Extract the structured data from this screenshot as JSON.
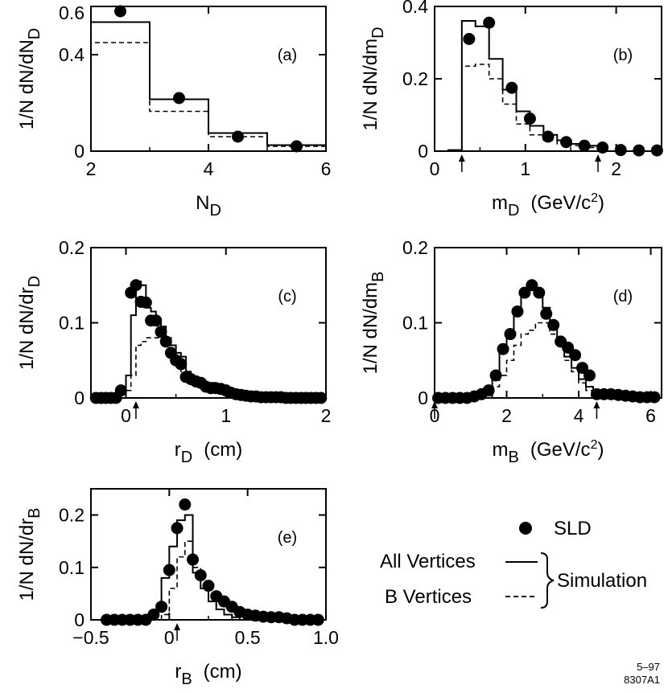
{
  "chart_data": [
    {
      "id": "a",
      "type": "histogram",
      "panel_label": "(a)",
      "xlabel": "N",
      "xlabel_sub": "D",
      "ylabel": "1/N dN/dN",
      "ylabel_sub": "D",
      "xlim": [
        2,
        6
      ],
      "ylim": [
        0,
        0.6
      ],
      "xticks": [
        2,
        4,
        6
      ],
      "yticks": [
        0,
        0.4
      ],
      "ytick_labels": [
        "0",
        "0.4"
      ],
      "ytop_label": "0.6",
      "all_vertices_edges": [
        2,
        3,
        4,
        5,
        6
      ],
      "all_vertices_values": [
        0.535,
        0.215,
        0.075,
        0.025
      ],
      "b_vertices_edges": [
        2,
        3,
        4,
        5,
        6
      ],
      "b_vertices_values": [
        0.45,
        0.165,
        0.06,
        0.02
      ],
      "sld_x": [
        2.5,
        3.5,
        4.5,
        5.5
      ],
      "sld_y": [
        0.58,
        0.22,
        0.06,
        0.02
      ]
    },
    {
      "id": "b",
      "type": "histogram",
      "panel_label": "(b)",
      "xlabel": "m",
      "xlabel_sub": "D",
      "xlabel_unit": "(GeV/c",
      "xlabel_unit_sup": "2",
      "xlabel_unit_end": ")",
      "ylabel": "1/N dN/dm",
      "ylabel_sub": "D",
      "xlim": [
        0,
        2.5
      ],
      "ylim": [
        0,
        0.4
      ],
      "xticks": [
        0,
        1,
        2
      ],
      "yticks": [
        0,
        0.2,
        0.4
      ],
      "ytick_labels": [
        "0",
        "0.2",
        "0.4"
      ],
      "cut_arrows_x": [
        0.3,
        1.8
      ],
      "all_vertices_edges": [
        0.15,
        0.3,
        0.45,
        0.6,
        0.75,
        0.9,
        1.05,
        1.2,
        1.35,
        1.5,
        1.65,
        1.8
      ],
      "all_vertices_values": [
        0.003,
        0.36,
        0.345,
        0.255,
        0.17,
        0.11,
        0.07,
        0.045,
        0.03,
        0.02,
        0.015
      ],
      "b_vertices_edges": [
        0.3,
        0.45,
        0.6,
        0.75,
        0.9,
        1.05,
        1.2,
        1.35,
        1.5,
        1.65,
        1.8
      ],
      "b_vertices_values": [
        0.235,
        0.24,
        0.2,
        0.13,
        0.075,
        0.045,
        0.03,
        0.02,
        0.015,
        0.01
      ],
      "sld_x": [
        0.38,
        0.6,
        0.85,
        1.05,
        1.25,
        1.45,
        1.65,
        1.85,
        2.05,
        2.25,
        2.45
      ],
      "sld_y": [
        0.31,
        0.355,
        0.175,
        0.09,
        0.04,
        0.025,
        0.015,
        0.01,
        0.003,
        0.002,
        0.002
      ]
    },
    {
      "id": "c",
      "type": "histogram",
      "panel_label": "(c)",
      "xlabel": "r",
      "xlabel_sub": "D",
      "xlabel_unit": "(cm)",
      "ylabel": "1/N dN/dr",
      "ylabel_sub": "D",
      "xlim": [
        -0.35,
        2.0
      ],
      "ylim": [
        0,
        0.2
      ],
      "xticks": [
        0,
        1,
        2
      ],
      "yticks": [
        0,
        0.1,
        0.2
      ],
      "ytick_labels": [
        "0",
        "0.1",
        "0.2"
      ],
      "cut_arrows_x": [
        0.1
      ],
      "all_vertices_edges": [
        0.0,
        0.05,
        0.1,
        0.15,
        0.2,
        0.25,
        0.3,
        0.35,
        0.4,
        0.45,
        0.5,
        0.55,
        0.6,
        0.65,
        0.7,
        0.8,
        0.9,
        1.0,
        1.1,
        1.2,
        1.3
      ],
      "all_vertices_values": [
        0.03,
        0.11,
        0.155,
        0.15,
        0.12,
        0.115,
        0.1,
        0.095,
        0.08,
        0.07,
        0.06,
        0.055,
        0.035,
        0.025,
        0.02,
        0.02,
        0.015,
        0.01,
        0.005,
        0.003
      ],
      "b_vertices_edges": [
        0.0,
        0.05,
        0.1,
        0.15,
        0.2,
        0.25,
        0.3,
        0.35,
        0.4,
        0.45,
        0.5,
        0.55,
        0.6,
        0.65,
        0.7,
        0.8,
        0.9,
        1.0,
        1.1
      ],
      "b_vertices_values": [
        0.01,
        0.03,
        0.07,
        0.075,
        0.08,
        0.08,
        0.08,
        0.075,
        0.065,
        0.055,
        0.045,
        0.035,
        0.025,
        0.02,
        0.015,
        0.012,
        0.008,
        0.004
      ],
      "sld_x": [
        -0.3,
        -0.25,
        -0.2,
        -0.15,
        -0.1,
        -0.05,
        0.05,
        0.1,
        0.15,
        0.2,
        0.25,
        0.3,
        0.35,
        0.4,
        0.45,
        0.5,
        0.55,
        0.6,
        0.65,
        0.7,
        0.75,
        0.8,
        0.85,
        0.9,
        0.95,
        1.0,
        1.05,
        1.1,
        1.15,
        1.2,
        1.25,
        1.3,
        1.35,
        1.4,
        1.45,
        1.5,
        1.55,
        1.6,
        1.65,
        1.7,
        1.75,
        1.8,
        1.85,
        1.9,
        1.95
      ],
      "sld_y": [
        0,
        0,
        0,
        0,
        0,
        0.01,
        0.14,
        0.15,
        0.128,
        0.127,
        0.103,
        0.103,
        0.088,
        0.075,
        0.06,
        0.05,
        0.045,
        0.028,
        0.025,
        0.022,
        0.02,
        0.015,
        0.013,
        0.013,
        0.012,
        0.01,
        0.007,
        0.005,
        0.004,
        0.003,
        0.002,
        0.002,
        0.001,
        0.001,
        0.001,
        0.001,
        0.001,
        0,
        0,
        0,
        0,
        0,
        0,
        0,
        0
      ]
    },
    {
      "id": "d",
      "type": "histogram",
      "panel_label": "(d)",
      "xlabel": "m",
      "xlabel_sub": "B",
      "xlabel_unit": "(GeV/c",
      "xlabel_unit_sup": "2",
      "xlabel_unit_end": ")",
      "ylabel": "1/N dN/dm",
      "ylabel_sub": "B",
      "xlim": [
        0,
        6.3
      ],
      "ylim": [
        0,
        0.2
      ],
      "xticks": [
        0,
        2,
        4,
        6
      ],
      "yticks": [
        0,
        0.1,
        0.2
      ],
      "ytick_labels": [
        "0",
        "0.1",
        "0.2"
      ],
      "cut_arrows_x": [
        0,
        4.5
      ],
      "all_vertices_edges": [
        1.6,
        1.8,
        2.0,
        2.2,
        2.4,
        2.6,
        2.8,
        3.0,
        3.2,
        3.4,
        3.6,
        3.8,
        4.0,
        4.2,
        4.4
      ],
      "all_vertices_values": [
        0.03,
        0.06,
        0.08,
        0.12,
        0.14,
        0.145,
        0.14,
        0.12,
        0.095,
        0.075,
        0.055,
        0.04,
        0.025,
        0.015
      ],
      "b_vertices_edges": [
        1.6,
        1.8,
        2.0,
        2.2,
        2.4,
        2.6,
        2.8,
        3.0,
        3.2,
        3.4,
        3.6,
        3.8,
        4.0,
        4.2,
        4.4
      ],
      "b_vertices_values": [
        0.015,
        0.03,
        0.05,
        0.07,
        0.085,
        0.09,
        0.1,
        0.1,
        0.085,
        0.07,
        0.05,
        0.035,
        0.02,
        0.01
      ],
      "sld_x": [
        0.1,
        0.3,
        0.5,
        0.7,
        0.9,
        1.1,
        1.3,
        1.5,
        1.7,
        1.9,
        2.1,
        2.3,
        2.5,
        2.7,
        2.9,
        3.1,
        3.3,
        3.5,
        3.7,
        3.9,
        4.1,
        4.3,
        4.5,
        4.7,
        4.9,
        5.1,
        5.3,
        5.5,
        5.7,
        5.9,
        6.1
      ],
      "sld_y": [
        0,
        0,
        0,
        0,
        0,
        0.002,
        0.005,
        0.01,
        0.03,
        0.065,
        0.085,
        0.115,
        0.14,
        0.15,
        0.14,
        0.112,
        0.097,
        0.075,
        0.067,
        0.057,
        0.04,
        0.03,
        0.005,
        0.005,
        0.005,
        0.004,
        0.003,
        0.002,
        0.001,
        0.001,
        0.001
      ]
    },
    {
      "id": "e",
      "type": "histogram",
      "panel_label": "(e)",
      "xlabel": "r",
      "xlabel_sub": "B",
      "xlabel_unit": "(cm)",
      "ylabel": "1/N dN/dr",
      "ylabel_sub": "B",
      "xlim": [
        -0.5,
        1.0
      ],
      "ylim": [
        0,
        0.25
      ],
      "xticks": [
        -0.5,
        0,
        0.5,
        1.0
      ],
      "xtick_labels": [
        "−0.5",
        "0",
        "0.5",
        "1.0"
      ],
      "yticks": [
        0,
        0.1,
        0.2
      ],
      "ytick_labels": [
        "0",
        "0.1",
        "0.2"
      ],
      "cut_arrows_x": [
        0.05
      ],
      "all_vertices_edges": [
        -0.1,
        -0.05,
        0.0,
        0.05,
        0.1,
        0.15,
        0.2,
        0.25,
        0.3,
        0.35,
        0.4,
        0.45
      ],
      "all_vertices_values": [
        0.02,
        0.08,
        0.14,
        0.19,
        0.2,
        0.09,
        0.06,
        0.035,
        0.02,
        0.01,
        0.005
      ],
      "b_vertices_edges": [
        -0.05,
        0.0,
        0.05,
        0.1,
        0.15,
        0.2,
        0.25,
        0.3,
        0.35,
        0.4
      ],
      "b_vertices_values": [
        0.01,
        0.06,
        0.12,
        0.15,
        0.1,
        0.06,
        0.035,
        0.02,
        0.01
      ],
      "sld_x": [
        -0.4,
        -0.35,
        -0.3,
        -0.25,
        -0.2,
        -0.15,
        -0.1,
        -0.05,
        0.0,
        0.05,
        0.1,
        0.15,
        0.2,
        0.25,
        0.3,
        0.35,
        0.4,
        0.45,
        0.5,
        0.55,
        0.6,
        0.65,
        0.7,
        0.75,
        0.8,
        0.85,
        0.9,
        0.95
      ],
      "sld_y": [
        0,
        0,
        0,
        0,
        0,
        0,
        0.01,
        0.025,
        0.095,
        0.175,
        0.22,
        0.115,
        0.085,
        0.065,
        0.045,
        0.035,
        0.025,
        0.015,
        0.01,
        0.008,
        0.006,
        0.005,
        0.005,
        0.003,
        0.0,
        0.0,
        0.0,
        0.0
      ]
    }
  ],
  "legend": {
    "sld_label": "SLD",
    "all_label": "All Vertices",
    "b_label": "B Vertices",
    "simulation_label": "Simulation"
  },
  "footnote": {
    "line1": "5–97",
    "line2": "8307A1"
  }
}
